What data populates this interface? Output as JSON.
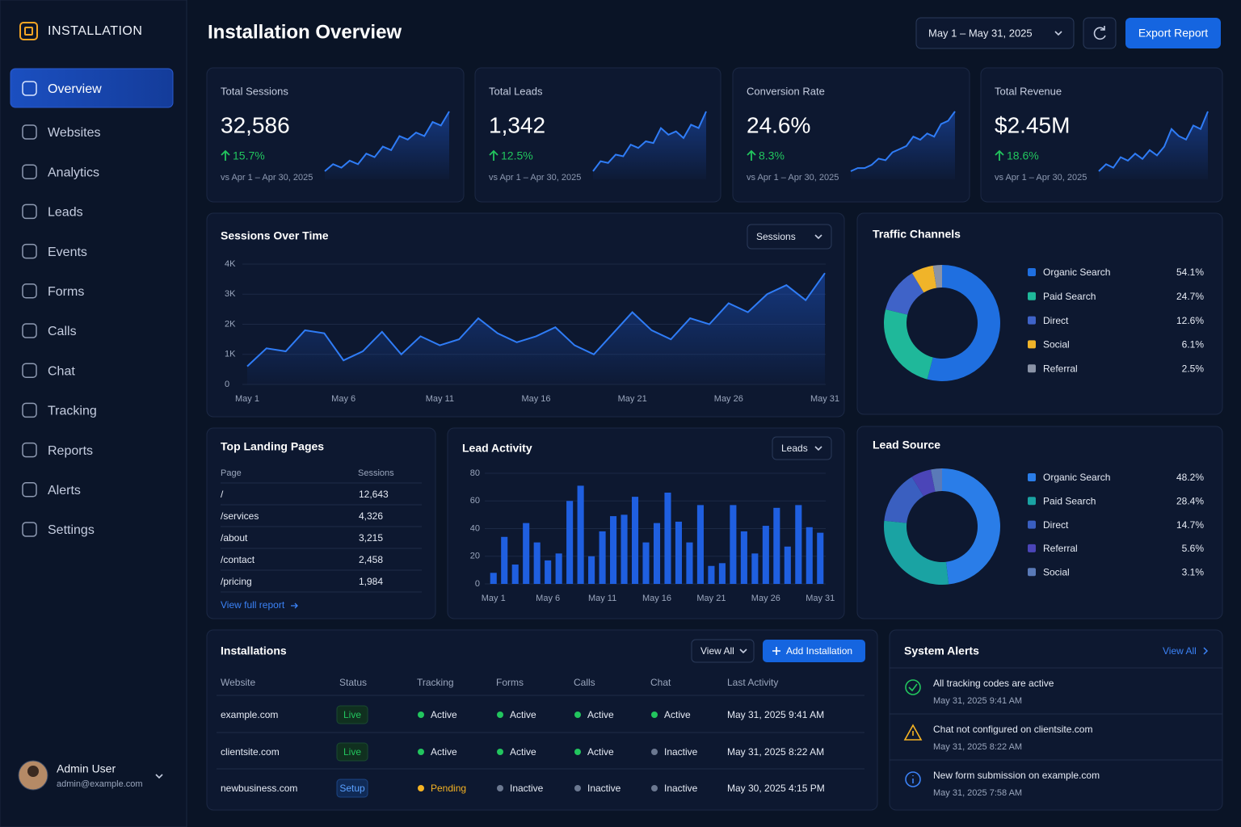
{
  "sidebar": {
    "brand": "INSTALLATION",
    "nav": [
      "Overview",
      "Websites",
      "Analytics",
      "Leads",
      "Events",
      "Forms",
      "Calls",
      "Chat",
      "Tracking",
      "Reports",
      "Alerts",
      "Settings"
    ],
    "user": {
      "name": "Admin User",
      "email": "admin@example.com"
    }
  },
  "header": {
    "title": "Installation Overview",
    "date_range": "May 1 – May 31, 2025",
    "export": "Export Report"
  },
  "kpis": [
    {
      "label": "Total Sessions",
      "value": "32,586",
      "change": "15.7%",
      "compare": "vs Apr 1 – Apr 30, 2025",
      "trend": [
        10,
        14,
        12,
        16,
        14,
        20,
        18,
        24,
        22,
        30,
        28,
        32,
        30,
        38,
        36,
        44
      ]
    },
    {
      "label": "Total Leads",
      "value": "1,342",
      "change": "12.5%",
      "compare": "vs Apr 1 – Apr 30, 2025",
      "trend": [
        8,
        14,
        13,
        18,
        17,
        24,
        22,
        26,
        25,
        34,
        30,
        32,
        28,
        36,
        34,
        44
      ]
    },
    {
      "label": "Conversion Rate",
      "value": "24.6%",
      "change": "8.3%",
      "compare": "vs Apr 1 – Apr 30, 2025",
      "trend": [
        8,
        10,
        10,
        12,
        16,
        15,
        20,
        22,
        24,
        30,
        28,
        32,
        30,
        38,
        40,
        46
      ]
    },
    {
      "label": "Total Revenue",
      "value": "$2.45M",
      "change": "18.6%",
      "compare": "vs Apr 1 – Apr 30, 2025",
      "trend": [
        10,
        14,
        12,
        18,
        16,
        20,
        17,
        22,
        19,
        24,
        34,
        30,
        28,
        36,
        34,
        44
      ]
    }
  ],
  "chart_data": [
    {
      "type": "line",
      "title": "Sessions Over Time",
      "dropdown": "Sessions",
      "color": "#2f7cf6",
      "categories": [
        "May 1",
        null,
        null,
        null,
        null,
        "May 6",
        null,
        null,
        null,
        null,
        "May 11",
        null,
        null,
        null,
        null,
        "May 16",
        null,
        null,
        null,
        null,
        "May 21",
        null,
        null,
        null,
        null,
        "May 26",
        null,
        null,
        null,
        null,
        "May 31"
      ],
      "values": [
        600,
        1200,
        1100,
        1800,
        1700,
        800,
        1100,
        1750,
        1000,
        1600,
        1300,
        1500,
        2200,
        1700,
        1400,
        1600,
        1900,
        1300,
        1000,
        1700,
        2400,
        1800,
        1500,
        2200,
        2000,
        2700,
        2400,
        3000,
        3300,
        2800,
        3700
      ],
      "ylim": [
        0,
        4000
      ],
      "yticks": [
        0,
        {
          "value": 1000,
          "label": "1K"
        },
        {
          "value": 2000,
          "label": "2K"
        },
        {
          "value": 3000,
          "label": "3K"
        },
        {
          "value": 4000,
          "label": "4K"
        }
      ],
      "grid": true
    },
    {
      "type": "pie",
      "title": "Traffic Channels",
      "categories": [
        "Organic Search",
        "Paid Search",
        "Direct",
        "Social",
        "Referral"
      ],
      "values": [
        54.1,
        24.7,
        12.6,
        6.1,
        2.5
      ],
      "value_labels": [
        "54.1%",
        "24.7%",
        "12.6%",
        "6.1%",
        "2.5%"
      ],
      "colors": [
        "#1f6fe0",
        "#1fb89a",
        "#3f63c8",
        "#f0b429",
        "#8a93a6"
      ]
    },
    {
      "type": "bar",
      "title": "Lead Activity",
      "dropdown": "Leads",
      "color": "#1f5fe0",
      "categories": [
        "May 1",
        null,
        null,
        null,
        null,
        "May 6",
        null,
        null,
        null,
        null,
        "May 11",
        null,
        null,
        null,
        null,
        "May 16",
        null,
        null,
        null,
        null,
        "May 21",
        null,
        null,
        null,
        null,
        "May 26",
        null,
        null,
        null,
        null,
        "May 31"
      ],
      "values": [
        8,
        34,
        14,
        44,
        30,
        17,
        22,
        60,
        71,
        20,
        38,
        49,
        50,
        63,
        30,
        44,
        66,
        45,
        30,
        57,
        13,
        15,
        57,
        38,
        22,
        42,
        55,
        27,
        57,
        41,
        37
      ],
      "ylim": [
        0,
        80
      ],
      "yticks": [
        0,
        20,
        40,
        60,
        80
      ],
      "grid": true
    },
    {
      "type": "pie",
      "title": "Lead Source",
      "categories": [
        "Organic Search",
        "Paid Search",
        "Direct",
        "Referral",
        "Social"
      ],
      "values": [
        48.2,
        28.4,
        14.7,
        5.6,
        3.1
      ],
      "value_labels": [
        "48.2%",
        "28.4%",
        "14.7%",
        "5.6%",
        "3.1%"
      ],
      "colors": [
        "#2a7de8",
        "#1aa3a3",
        "#3a5fc0",
        "#4b45b8",
        "#5a7ab8"
      ]
    }
  ],
  "landing_pages": {
    "title": "Top Landing Pages",
    "columns": [
      "Page",
      "Sessions"
    ],
    "rows": [
      [
        "/",
        "12,643"
      ],
      [
        "/services",
        "4,326"
      ],
      [
        "/about",
        "3,215"
      ],
      [
        "/contact",
        "2,458"
      ],
      [
        "/pricing",
        "1,984"
      ]
    ],
    "link": "View full report"
  },
  "installations": {
    "title": "Installations",
    "view_all": "View All",
    "add": "Add Installation",
    "columns": [
      "Website",
      "Status",
      "Tracking",
      "Forms",
      "Calls",
      "Chat",
      "Last Activity"
    ],
    "rows": [
      [
        "example.com",
        "Live",
        "Active",
        "Active",
        "Active",
        "Active",
        "May 31, 2025 9:41 AM"
      ],
      [
        "clientsite.com",
        "Live",
        "Active",
        "Active",
        "Active",
        "Inactive",
        "May 31, 2025 8:22 AM"
      ],
      [
        "newbusiness.com",
        "Setup",
        "Pending",
        "Inactive",
        "Inactive",
        "Inactive",
        "May 30, 2025 4:15 PM"
      ]
    ]
  },
  "alerts": {
    "title": "System Alerts",
    "view_all": "View All",
    "items": [
      {
        "text": "All tracking codes are active",
        "time": "May 31, 2025 9:41 AM"
      },
      {
        "text": "Chat not configured on clientsite.com",
        "time": "May 31, 2025 8:22 AM"
      },
      {
        "text": "New form submission on example.com",
        "time": "May 31, 2025 7:58 AM"
      }
    ]
  }
}
